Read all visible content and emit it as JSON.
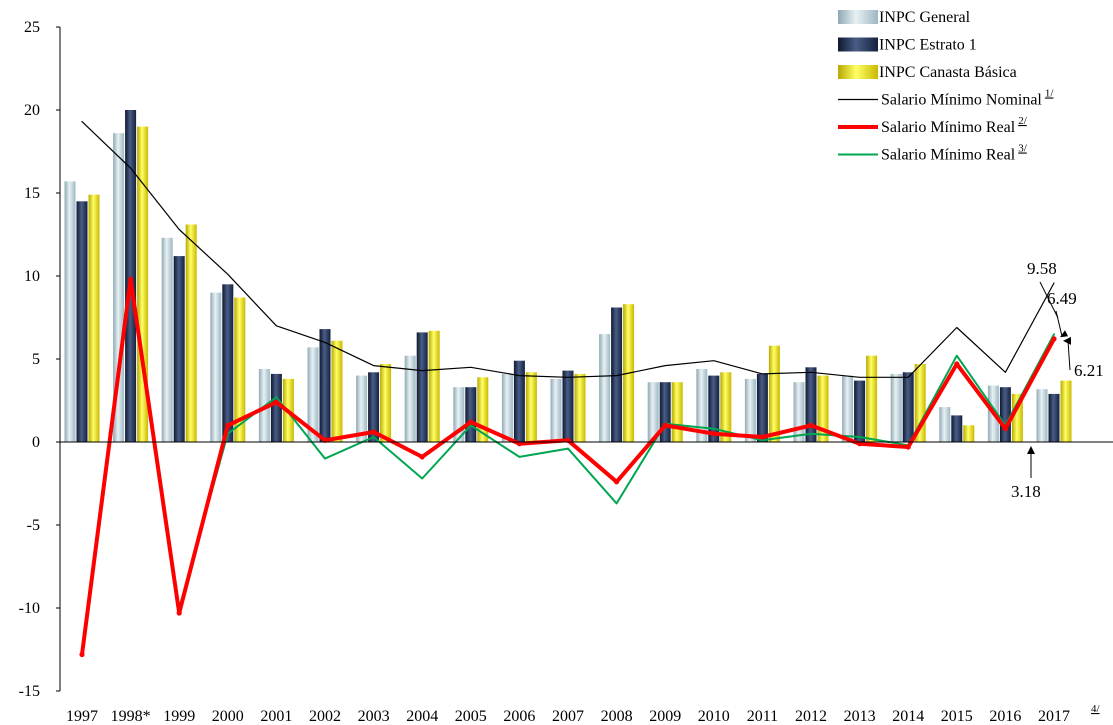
{
  "chart_data": {
    "type": "bar",
    "categories": [
      "1997",
      "1998*",
      "1999",
      "2000",
      "2001",
      "2002",
      "2003",
      "2004",
      "2005",
      "2006",
      "2007",
      "2008",
      "2009",
      "2010",
      "2011",
      "2012",
      "2013",
      "2014",
      "2015",
      "2016",
      "2017"
    ],
    "last_category_note": "4/",
    "ylim": [
      -15,
      25
    ],
    "yticks": [
      -15,
      -10,
      -5,
      0,
      5,
      10,
      15,
      20,
      25
    ],
    "legend_position": "top-right",
    "grid": false,
    "series": [
      {
        "name": "INPC General",
        "kind": "bar",
        "note": "",
        "color": "#b8cfd8",
        "values": [
          15.7,
          18.6,
          12.3,
          9.0,
          4.4,
          5.7,
          4.0,
          5.2,
          3.3,
          4.1,
          3.8,
          6.5,
          3.6,
          4.4,
          3.8,
          3.6,
          4.0,
          4.1,
          2.1,
          3.4,
          3.18
        ]
      },
      {
        "name": "INPC Estrato 1",
        "kind": "bar",
        "note": "",
        "color": "#1f2d4a",
        "values": [
          14.5,
          20.0,
          11.2,
          9.5,
          4.1,
          6.8,
          4.2,
          6.6,
          3.3,
          4.9,
          4.3,
          8.1,
          3.6,
          4.0,
          4.1,
          4.5,
          3.7,
          4.2,
          1.6,
          3.3,
          2.9
        ]
      },
      {
        "name": "INPC Canasta Básica",
        "kind": "bar",
        "note": "",
        "color": "#f0e000",
        "values": [
          14.9,
          19.0,
          13.1,
          8.7,
          3.8,
          6.1,
          4.7,
          6.7,
          3.9,
          4.2,
          4.1,
          8.3,
          3.6,
          4.2,
          5.8,
          4.0,
          5.2,
          4.7,
          1.0,
          2.9,
          3.7
        ]
      },
      {
        "name": "Salario Mínimo Nominal",
        "kind": "line",
        "note": "1/",
        "color": "#000000",
        "width": 1.2,
        "values": [
          19.3,
          16.5,
          12.8,
          10.1,
          7.0,
          6.0,
          4.6,
          4.3,
          4.5,
          4.0,
          3.9,
          4.0,
          4.6,
          4.9,
          4.1,
          4.2,
          3.9,
          3.9,
          6.9,
          4.2,
          9.58
        ]
      },
      {
        "name": "Salario Mínimo Real",
        "kind": "line",
        "note": "2/",
        "color": "#ff0000",
        "width": 4,
        "values": [
          -12.8,
          9.8,
          -10.3,
          1.0,
          2.4,
          0.1,
          0.6,
          -0.9,
          1.2,
          -0.1,
          0.1,
          -2.4,
          1.0,
          0.5,
          0.3,
          1.0,
          -0.1,
          -0.3,
          4.7,
          0.8,
          6.21
        ]
      },
      {
        "name": "Salario Mínimo Real",
        "kind": "line",
        "note": "3/",
        "color": "#00a651",
        "width": 2,
        "values": [
          -12.6,
          9.4,
          -10.0,
          0.5,
          2.7,
          -1.0,
          0.3,
          -2.2,
          1.0,
          -0.9,
          -0.4,
          -3.7,
          1.1,
          0.8,
          0.1,
          0.5,
          0.3,
          -0.2,
          5.2,
          1.0,
          6.49
        ]
      }
    ],
    "annotations": [
      "9.58",
      "6.49",
      "6.21",
      "3.18"
    ]
  }
}
